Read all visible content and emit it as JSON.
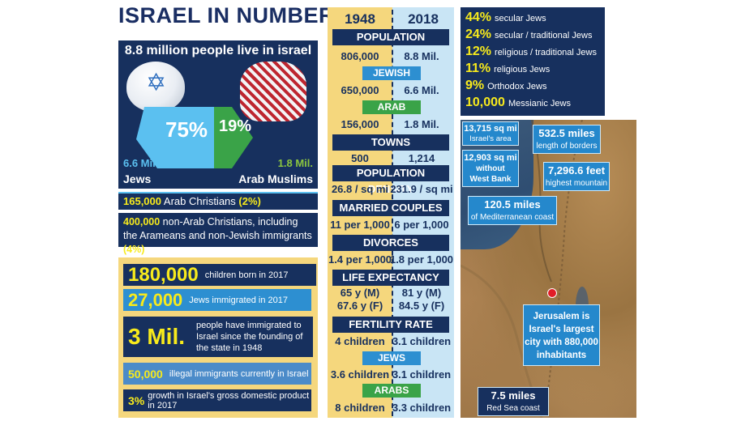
{
  "title": "ISRAEL IN NUMBERS",
  "population_panel": {
    "heading": "8.8 million people live in israel",
    "jews_percent": "75%",
    "arab_percent": "19%",
    "jews_count": "6.6 Mil.",
    "jews_label": "Jews",
    "arab_count": "1.8 Mil.",
    "arab_label": "Arab Muslims",
    "christians_count": "165,000",
    "christians_label": "Arab Christians",
    "christians_percent": "(2%)",
    "nonarab_count": "400,000",
    "nonarab_label": "non-Arab Christians, including the Arameans and non-Jewish immigrants",
    "nonarab_percent": "(4%)"
  },
  "facts": [
    {
      "big": "180,000",
      "text": "children born in 2017"
    },
    {
      "big": "27,000",
      "text": "Jews immigrated in 2017"
    },
    {
      "big": "3 Mil.",
      "text": "people have immigrated to Israel since the founding of the state in 1948"
    },
    {
      "big": "50,000",
      "text": "illegal immigrants currently in Israel"
    },
    {
      "big": "3%",
      "text": "growth in Israel's gross domestic product in 2017"
    }
  ],
  "table": {
    "year_left": "1948",
    "year_right": "2018",
    "population": {
      "label": "POPULATION",
      "left": "806,000",
      "right": "8.8 Mil."
    },
    "jewish": {
      "label": "JEWISH",
      "left": "650,000",
      "right": "6.6 Mil."
    },
    "arab": {
      "label": "ARAB",
      "left": "156,000",
      "right": "1.8 Mil."
    },
    "towns": {
      "label": "TOWNS",
      "left": "500",
      "right": "1,214"
    },
    "density": {
      "label": "POPULATION DENSITY",
      "left": "26.8 / sq mi",
      "right": "231.9 / sq mi"
    },
    "married": {
      "label": "MARRIED COUPLES",
      "left": "11 per 1,000",
      "right": "6 per 1,000"
    },
    "divorces": {
      "label": "DIVORCES",
      "left": "1.4 per 1,000",
      "right": "1.8 per 1,000"
    },
    "life": {
      "label": "LIFE EXPECTANCY",
      "left_m": "65 y (M)",
      "left_f": "67.6 y (F)",
      "right_m": "81 y (M)",
      "right_f": "84.5 y (F)"
    },
    "fertility": {
      "label": "FERTILITY RATE",
      "left": "4 children",
      "right": "3.1 children"
    },
    "fert_jews": {
      "label": "JEWS",
      "left": "3.6 children",
      "right": "3.1 children"
    },
    "fert_arabs": {
      "label": "ARABS",
      "left": "8 children",
      "right": "3.3 children"
    }
  },
  "religion": [
    {
      "pct": "44%",
      "label": "secular Jews"
    },
    {
      "pct": "24%",
      "label": "secular / traditional Jews"
    },
    {
      "pct": "12%",
      "label": "religious / traditional Jews"
    },
    {
      "pct": "11%",
      "label": "religious Jews"
    },
    {
      "pct": "9%",
      "label": "Orthodox Jews"
    },
    {
      "pct": "10,000",
      "label": "Messianic Jews"
    }
  ],
  "map": {
    "area_value": "13,715 sq mi",
    "area_label": "Israel's area",
    "area_wb_value": "12,903 sq mi",
    "area_wb_line1": "without",
    "area_wb_line2": "West Bank",
    "borders_value": "532.5 miles",
    "borders_label": "length of borders",
    "mountain_value": "7,296.6 feet",
    "mountain_label": "highest mountain",
    "coast_value": "120.5 miles",
    "coast_label": "of Mediterranean coast",
    "jerusalem_line1": "Jerusalem is",
    "jerusalem_line2": "Israel's largest",
    "jerusalem_line3": "city with 880,000",
    "jerusalem_line4": "inhabitants",
    "redsea_value": "7.5 miles",
    "redsea_label": "Red Sea coast"
  },
  "colors": {
    "navy": "#17305e",
    "yellow": "#f7ea1c",
    "sky": "#5bc0f0",
    "green": "#8cc63f",
    "tan": "#f5d77d",
    "light_blue": "#c9e5f5",
    "map_blue": "#2588cc",
    "pin_red": "#e21d27"
  }
}
